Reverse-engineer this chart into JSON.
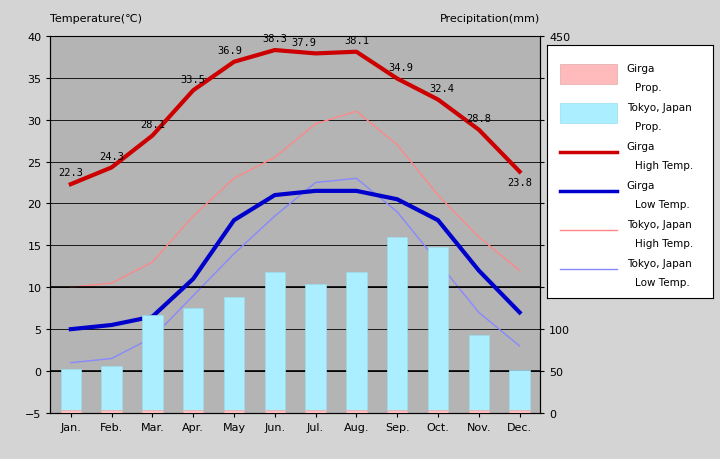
{
  "months": [
    "Jan.",
    "Feb.",
    "Mar.",
    "Apr.",
    "May",
    "Jun.",
    "Jul.",
    "Aug.",
    "Sep.",
    "Oct.",
    "Nov.",
    "Dec."
  ],
  "girga_high_temp": [
    22.3,
    24.3,
    28.1,
    33.5,
    36.9,
    38.3,
    37.9,
    38.1,
    34.9,
    32.4,
    28.8,
    23.8
  ],
  "girga_low_temp": [
    5.0,
    5.5,
    6.5,
    11.0,
    18.0,
    21.0,
    21.5,
    21.5,
    20.5,
    18.0,
    12.0,
    7.0
  ],
  "tokyo_high_temp": [
    10.0,
    10.5,
    13.0,
    18.5,
    23.0,
    25.5,
    29.5,
    31.0,
    27.0,
    21.0,
    16.0,
    12.0
  ],
  "tokyo_low_temp": [
    1.0,
    1.5,
    4.0,
    9.0,
    14.0,
    18.5,
    22.5,
    23.0,
    19.0,
    13.0,
    7.0,
    3.0
  ],
  "tokyo_precip_mm": [
    52,
    56,
    117,
    125,
    138,
    168,
    154,
    168,
    210,
    198,
    93,
    51
  ],
  "girga_precip_mm": [
    3,
    3,
    3,
    3,
    3,
    3,
    3,
    3,
    3,
    3,
    3,
    3
  ],
  "temp_ylim": [
    -5,
    40
  ],
  "precip_ylim": [
    0,
    450
  ],
  "fig_width": 7.2,
  "fig_height": 4.6,
  "dpi": 100,
  "bg_color": "#d4d4d4",
  "plot_bg_color": "#b4b4b4",
  "girga_high_color": "#cc0000",
  "girga_low_color": "#0000cc",
  "tokyo_high_color": "#ff8888",
  "tokyo_low_color": "#8888ff",
  "girga_precip_color": "#ffbbbb",
  "tokyo_precip_color": "#aaeeff",
  "title_left": "Temperature(℃)",
  "title_right": "Precipitation(mm)",
  "girga_high_labels": [
    "22.3",
    "24.3",
    "28.1",
    "33.5",
    "36.9",
    "38.3",
    "37.9",
    "38.1",
    "34.9",
    "32.4",
    "28.8",
    "23.8"
  ],
  "label_dx": [
    0.0,
    0.0,
    0.0,
    0.0,
    -0.1,
    0.0,
    -0.3,
    0.0,
    0.1,
    0.1,
    0.0,
    0.0
  ],
  "label_dy": [
    0.8,
    0.8,
    0.8,
    0.8,
    0.8,
    0.8,
    0.8,
    0.8,
    0.8,
    0.8,
    0.8,
    -1.8
  ]
}
